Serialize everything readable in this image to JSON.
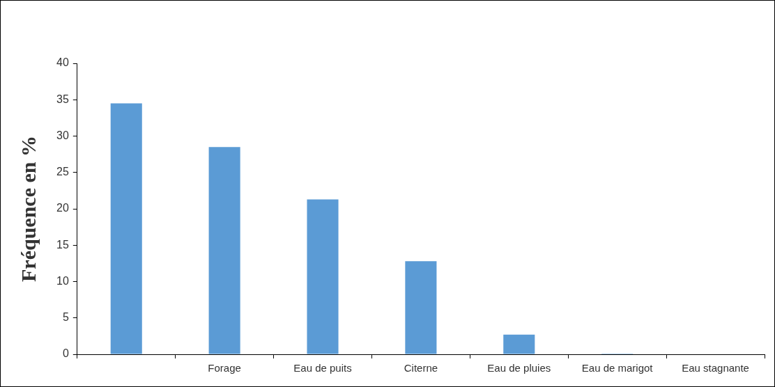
{
  "chart_data": {
    "type": "bar",
    "ylabel": "Fréquence en %",
    "categories": [
      null,
      "Forage",
      "Eau de puits",
      "Citerne",
      "Eau de pluies",
      "Eau de marigot",
      "Eau stagnante"
    ],
    "values": [
      34.5,
      28.5,
      21.3,
      12.8,
      2.7,
      0.1,
      0
    ],
    "color": "#5b9bd5",
    "ylim": [
      0,
      40
    ],
    "yticks": [
      0,
      5,
      10,
      15,
      20,
      25,
      30,
      35,
      40
    ],
    "grid": false,
    "legend": false
  }
}
